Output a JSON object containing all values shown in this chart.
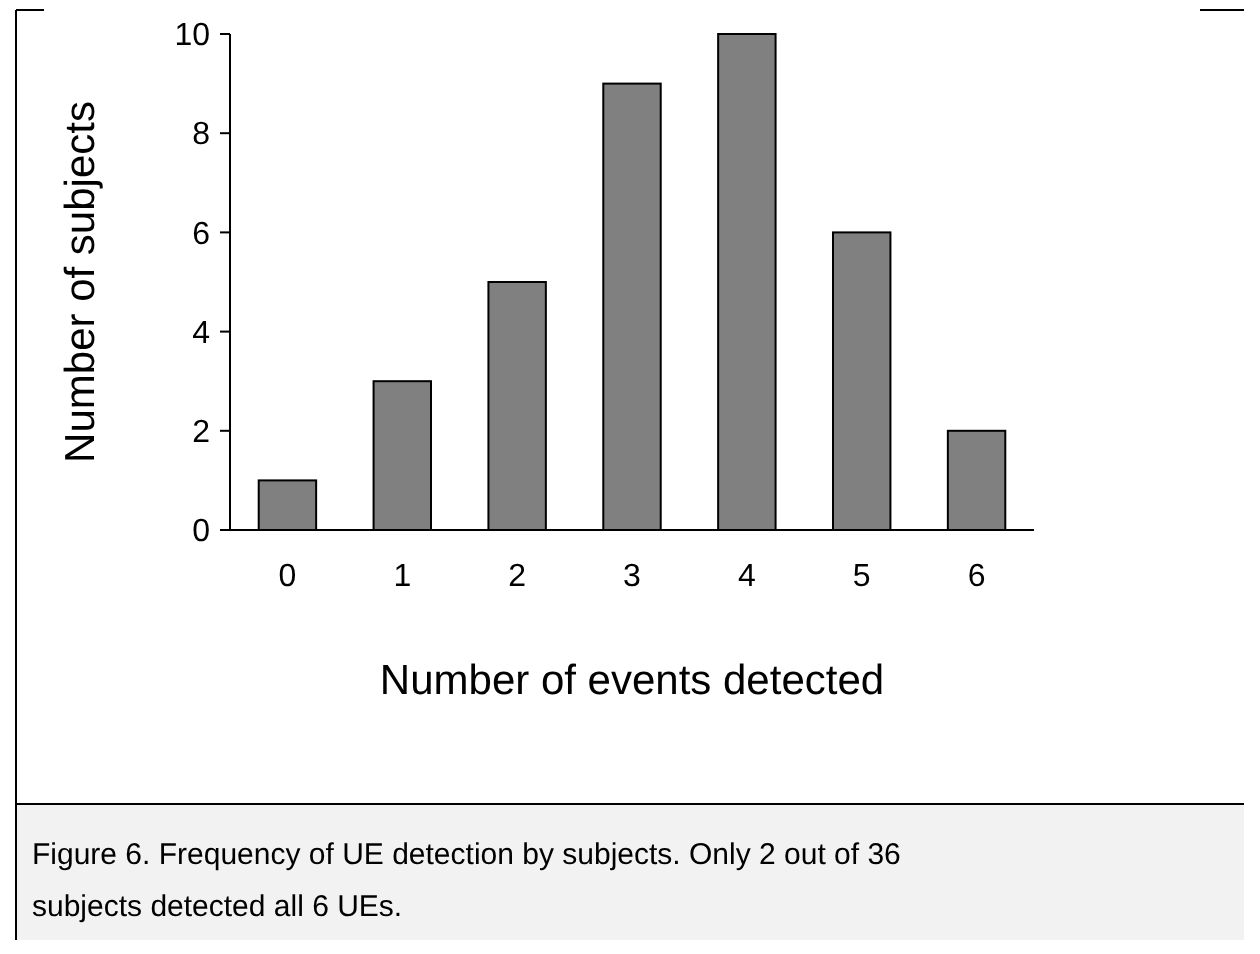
{
  "chart_data": {
    "type": "bar",
    "xlabel": "Number of events detected",
    "ylabel": "Number of subjects",
    "categories": [
      "0",
      "1",
      "2",
      "3",
      "4",
      "5",
      "6"
    ],
    "values": [
      1,
      3,
      5,
      9,
      10,
      6,
      2
    ],
    "color": "#808080",
    "ylim": [
      0,
      10
    ],
    "yticks": [
      0,
      2,
      4,
      6,
      8,
      10
    ],
    "annotations": [
      "Figure 6. Frequency of UE detection by subjects. Only 2 out of 36 subjects detected all 6 UEs."
    ]
  }
}
